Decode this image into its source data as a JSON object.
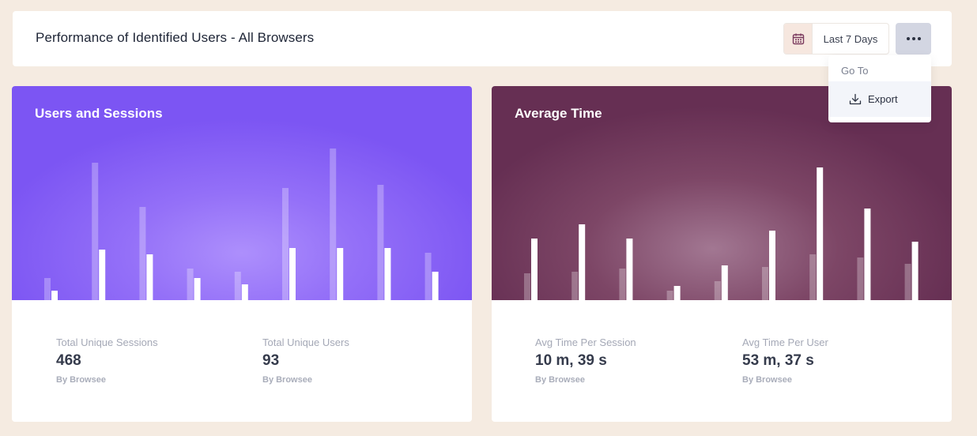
{
  "header": {
    "title": "Performance of Identified Users - All Browsers",
    "date_range_label": "Last 7 Days",
    "calendar_icon": "calendar-icon",
    "more_icon": "more-horizontal-icon"
  },
  "menu": {
    "heading": "Go To",
    "items": [
      {
        "label": "Export",
        "icon": "download-icon"
      }
    ]
  },
  "cards": [
    {
      "title": "Users and Sessions",
      "colors": {
        "background": "#7c55f3"
      },
      "stats": [
        {
          "label": "Total Unique Sessions",
          "value": "468",
          "source": "By Browsee"
        },
        {
          "label": "Total Unique Users",
          "value": "93",
          "source": "By Browsee"
        }
      ]
    },
    {
      "title": "Average Time",
      "colors": {
        "background": "#662f53"
      },
      "stats": [
        {
          "label": "Avg Time Per Session",
          "value": "10 m, 39 s",
          "source": "By Browsee"
        },
        {
          "label": "Avg Time Per User",
          "value": "53 m, 37 s",
          "source": "By Browsee"
        }
      ]
    }
  ],
  "chart_data": [
    {
      "type": "bar",
      "categories": [
        "",
        "",
        "",
        "",
        "",
        "",
        "",
        "",
        ""
      ],
      "series": [
        {
          "values": [
            28,
            174,
            118,
            40,
            36,
            142,
            192,
            146,
            60
          ]
        },
        {
          "values": [
            12,
            64,
            58,
            28,
            20,
            66,
            66,
            66,
            36
          ]
        }
      ],
      "ylim": [
        0,
        200
      ],
      "title": "",
      "xlabel": "",
      "ylabel": ""
    },
    {
      "type": "bar",
      "categories": [
        "",
        "",
        "",
        "",
        "",
        "",
        "",
        "",
        ""
      ],
      "series": [
        {
          "values": [
            34,
            36,
            40,
            12,
            24,
            42,
            58,
            54,
            46
          ]
        },
        {
          "values": [
            78,
            96,
            78,
            18,
            44,
            88,
            168,
            116,
            74
          ]
        }
      ],
      "ylim": [
        0,
        200
      ],
      "title": "",
      "xlabel": "",
      "ylabel": ""
    }
  ]
}
